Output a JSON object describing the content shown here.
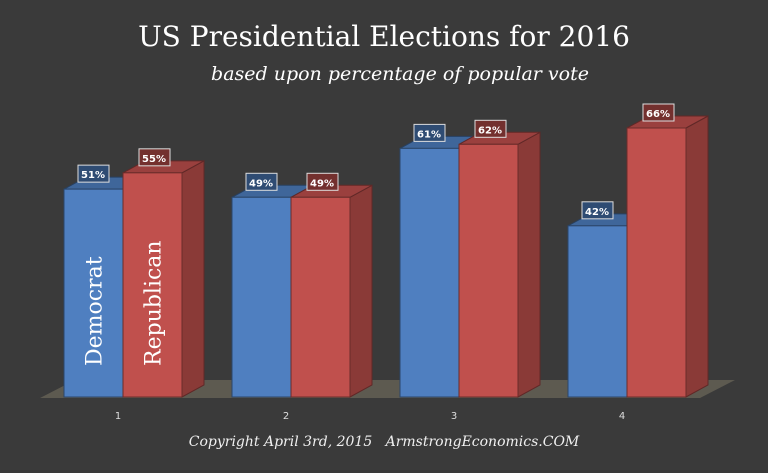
{
  "chart_data": {
    "type": "bar",
    "title": "US Presidential Elections for 2016",
    "subtitle": "based upon percentage of popular vote",
    "categories": [
      "1",
      "2",
      "3",
      "4"
    ],
    "series": [
      {
        "name": "Democrat",
        "color": "#4f7fc0",
        "values": [
          51,
          49,
          61,
          42
        ],
        "labels": [
          "51%",
          "49%",
          "61%",
          "42%"
        ]
      },
      {
        "name": "Republican",
        "color": "#c0504d",
        "values": [
          55,
          49,
          62,
          66
        ],
        "labels": [
          "55%",
          "49%",
          "62%",
          "66%"
        ]
      }
    ],
    "ylim": [
      0,
      100
    ],
    "grid": false,
    "legend": "inside-bars",
    "annotation": "Copyright April 3rd, 2015   ArmstrongEconomics.COM"
  }
}
